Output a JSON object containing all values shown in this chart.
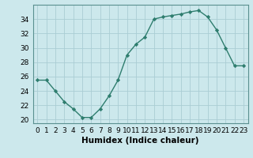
{
  "x": [
    0,
    1,
    2,
    3,
    4,
    5,
    6,
    7,
    8,
    9,
    10,
    11,
    12,
    13,
    14,
    15,
    16,
    17,
    18,
    19,
    20,
    21,
    22,
    23
  ],
  "y": [
    25.5,
    25.5,
    24.0,
    22.5,
    21.5,
    20.3,
    20.3,
    21.5,
    23.3,
    25.5,
    29.0,
    30.5,
    31.5,
    34.0,
    34.3,
    34.5,
    34.7,
    35.0,
    35.2,
    34.3,
    32.5,
    30.0,
    27.5,
    27.5
  ],
  "line_color": "#2e7d6e",
  "marker": "D",
  "markersize": 2.2,
  "linewidth": 1.0,
  "bg_color": "#cce8ec",
  "grid_color": "#aacdd4",
  "xlabel": "Humidex (Indice chaleur)",
  "ylim": [
    19.5,
    36.0
  ],
  "xlim": [
    -0.5,
    23.5
  ],
  "yticks": [
    20,
    22,
    24,
    26,
    28,
    30,
    32,
    34
  ],
  "xtick_labels": [
    "0",
    "1",
    "2",
    "3",
    "4",
    "5",
    "6",
    "7",
    "8",
    "9",
    "10",
    "11",
    "12",
    "13",
    "14",
    "15",
    "16",
    "17",
    "18",
    "19",
    "20",
    "21",
    "22",
    "23"
  ],
  "xlabel_fontsize": 7.5,
  "tick_fontsize": 6.5,
  "spine_color": "#5a9090"
}
